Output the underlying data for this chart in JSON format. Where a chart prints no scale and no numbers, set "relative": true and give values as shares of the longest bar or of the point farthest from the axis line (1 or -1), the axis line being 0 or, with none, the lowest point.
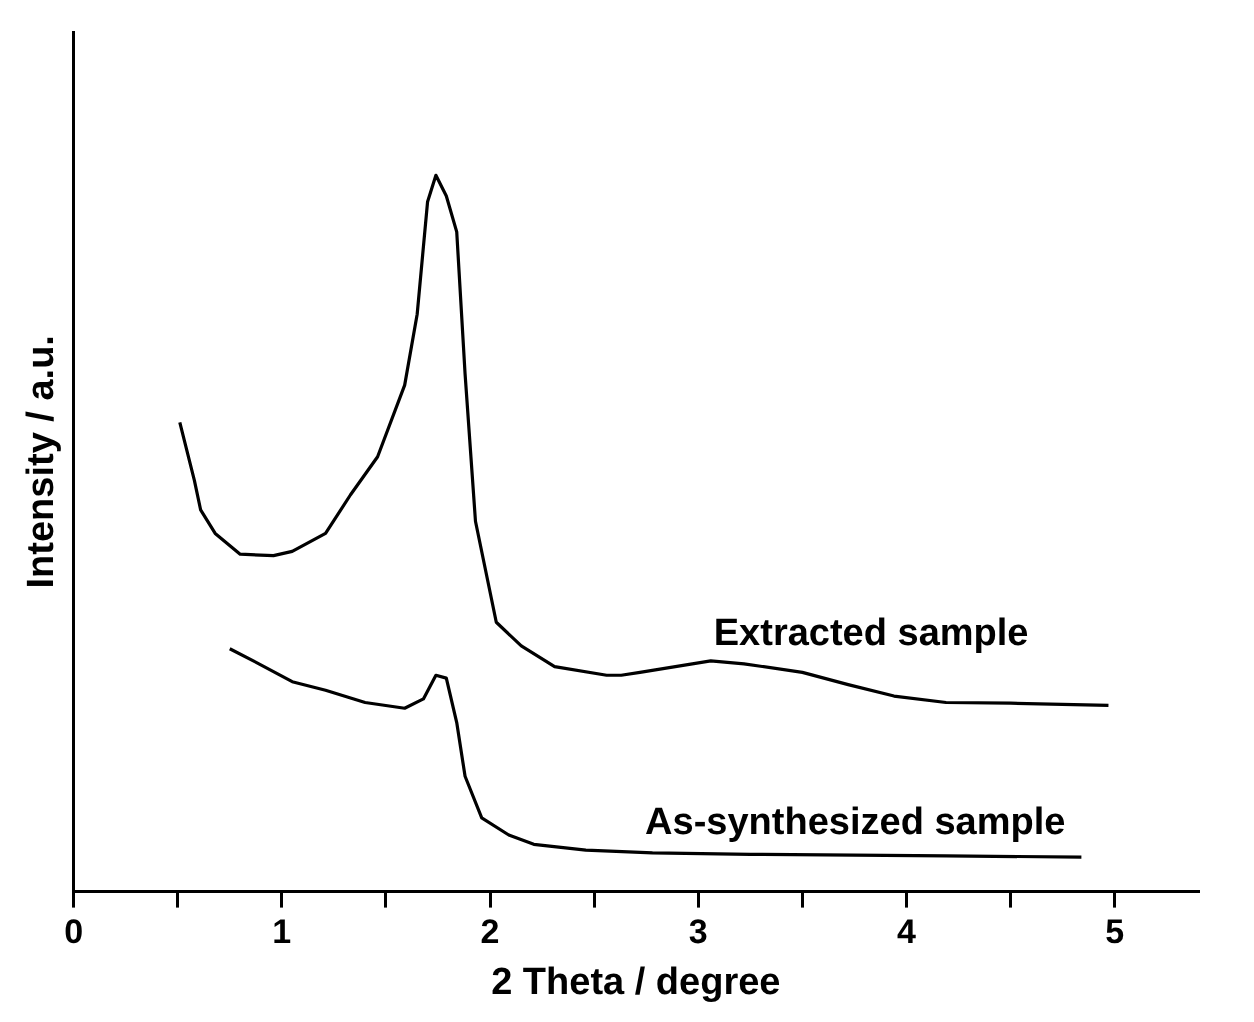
{
  "chart_data": {
    "type": "line",
    "relative": true,
    "xlabel": "2 Theta / degree",
    "ylabel": "Intensity / a.u.",
    "xlim": [
      0,
      5.4
    ],
    "xticks": [
      0,
      {
        "value": 0.5,
        "label": null
      },
      1,
      {
        "value": 1.5,
        "label": null
      },
      2,
      {
        "value": 2.5,
        "label": null
      },
      3,
      {
        "value": 3.5,
        "label": null
      },
      4,
      {
        "value": 4.5,
        "label": null
      },
      5
    ],
    "marker": "none",
    "grid": false,
    "legend": false,
    "series": [
      {
        "name": "Extracted sample",
        "color": "#000000",
        "x": [
          0.51,
          0.58,
          0.61,
          0.68,
          0.8,
          0.96,
          1.05,
          1.21,
          1.33,
          1.46,
          1.59,
          1.65,
          1.7,
          1.74,
          1.79,
          1.84,
          1.88,
          1.93,
          2.03,
          2.15,
          2.31,
          2.56,
          2.63,
          2.72,
          3.06,
          3.22,
          3.5,
          3.72,
          3.94,
          4.19,
          4.5,
          4.97
        ],
        "values": [
          0.655,
          0.574,
          0.533,
          0.5,
          0.471,
          0.469,
          0.475,
          0.5,
          0.554,
          0.607,
          0.707,
          0.806,
          0.963,
          1.0,
          0.971,
          0.921,
          0.723,
          0.517,
          0.376,
          0.343,
          0.314,
          0.302,
          0.302,
          0.306,
          0.322,
          0.318,
          0.306,
          0.289,
          0.273,
          0.264,
          0.263,
          0.26
        ]
      },
      {
        "name": "As-synthesized sample",
        "color": "#000000",
        "x": [
          0.75,
          0.89,
          1.05,
          1.21,
          1.4,
          1.59,
          1.68,
          1.74,
          1.79,
          1.84,
          1.88,
          1.96,
          2.09,
          2.21,
          2.46,
          2.78,
          3.25,
          4.19,
          4.84
        ],
        "values": [
          0.339,
          0.318,
          0.293,
          0.281,
          0.264,
          0.256,
          0.269,
          0.302,
          0.298,
          0.236,
          0.161,
          0.103,
          0.079,
          0.066,
          0.058,
          0.054,
          0.052,
          0.05,
          0.048
        ]
      }
    ]
  }
}
